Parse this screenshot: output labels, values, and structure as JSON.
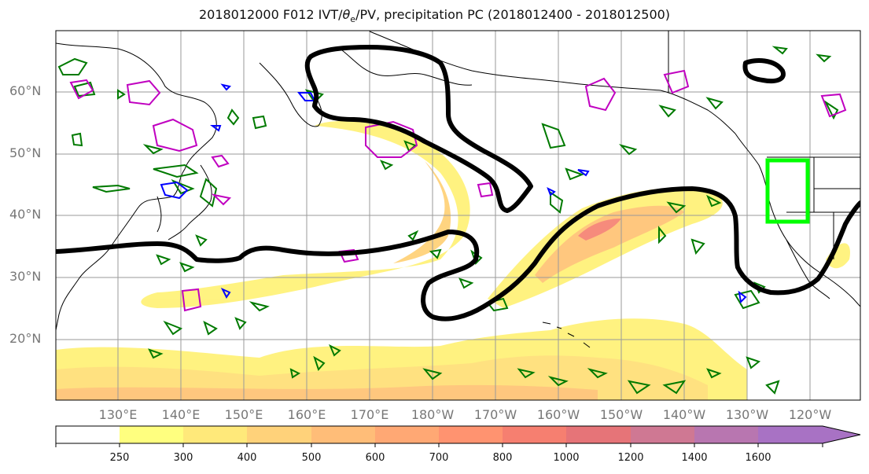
{
  "title": {
    "prefix": "2018012000 F012 IVT/",
    "theta": "θ",
    "theta_sub": "e",
    "suffix": "/PV, precipitation PC (2018012400 - 2018012500)"
  },
  "lat_labels": [
    "60°N",
    "50°N",
    "40°N",
    "30°N",
    "20°N"
  ],
  "lon_labels": [
    "130°E",
    "140°E",
    "150°E",
    "160°E",
    "170°E",
    "180°W",
    "170°W",
    "160°W",
    "150°W",
    "140°W",
    "130°W",
    "120°W"
  ],
  "colorbar": {
    "ticks": [
      "250",
      "300",
      "400",
      "500",
      "600",
      "700",
      "800",
      "1000",
      "1200",
      "1400",
      "1600"
    ],
    "colors": [
      "#ffffff",
      "#ffff7f",
      "#ffe97a",
      "#ffd27a",
      "#ffbd78",
      "#ffa874",
      "#ff9370",
      "#f67f70",
      "#e67478",
      "#cf7893",
      "#a872c4"
    ]
  },
  "colors": {
    "ivt_low": "#fff27a",
    "ivt_mid": "#ffc578",
    "ivt_high": "#f68575",
    "theta_e_contour": "#000000",
    "pv_contour": "#007a00",
    "pv_negative": "#0000ff",
    "precip_contour": "#c000c0",
    "target_box": "#00ff00",
    "coast": "#000000",
    "grid": "#9a9a9a"
  }
}
